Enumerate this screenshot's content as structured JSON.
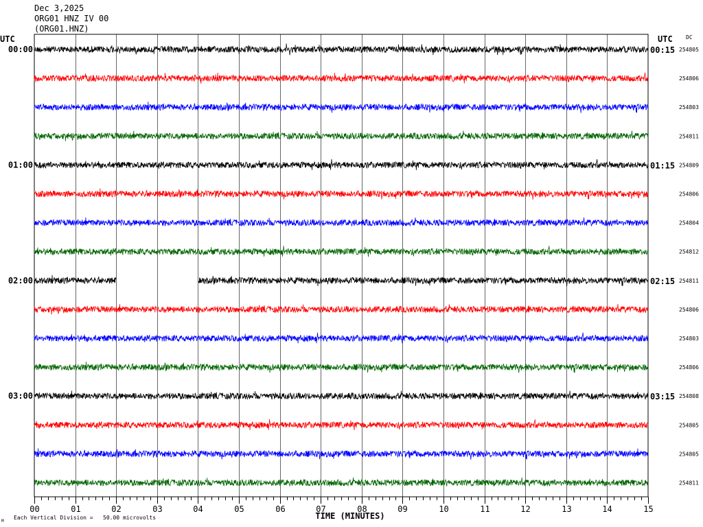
{
  "header": {
    "date": "Dec 3,2025",
    "station": "ORG01 HNZ IV 00",
    "channel": "(ORG01.HNZ)"
  },
  "left_axis_label": "UTC",
  "right_axis_label": "UTC",
  "dc_label": "DC",
  "footer": {
    "mark": "M",
    "scale_text": "Each Vertical Division =   50.00 microvolts"
  },
  "colors": {
    "trace_cycle": [
      "#000000",
      "#ff0000",
      "#0000ff",
      "#006400"
    ],
    "grid": "#000000",
    "background": "#ffffff"
  },
  "chart_data": {
    "type": "line",
    "title": "",
    "xlabel": "TIME (MINUTES)",
    "ylabel": "",
    "xlim": [
      0,
      15
    ],
    "x_ticks": [
      "00",
      "01",
      "02",
      "03",
      "04",
      "05",
      "06",
      "07",
      "08",
      "09",
      "10",
      "11",
      "12",
      "13",
      "14",
      "15"
    ],
    "grid": true,
    "lines": [
      {
        "left": "00:00",
        "right": "00:15",
        "dc": "254805"
      },
      {
        "left": "",
        "right": "",
        "dc": "254806"
      },
      {
        "left": "",
        "right": "",
        "dc": "254803"
      },
      {
        "left": "",
        "right": "",
        "dc": "254811"
      },
      {
        "left": "01:00",
        "right": "01:15",
        "dc": "254809"
      },
      {
        "left": "",
        "right": "",
        "dc": "254806"
      },
      {
        "left": "",
        "right": "",
        "dc": "254804"
      },
      {
        "left": "",
        "right": "",
        "dc": "254812"
      },
      {
        "left": "02:00",
        "right": "02:15",
        "dc": "254811",
        "gaps": [
          [
            2.0,
            4.0
          ]
        ]
      },
      {
        "left": "",
        "right": "",
        "dc": "254806"
      },
      {
        "left": "",
        "right": "",
        "dc": "254803"
      },
      {
        "left": "",
        "right": "",
        "dc": "254806"
      },
      {
        "left": "03:00",
        "right": "03:15",
        "dc": "254808"
      },
      {
        "left": "",
        "right": "",
        "dc": "254805"
      },
      {
        "left": "",
        "right": "",
        "dc": "254805"
      },
      {
        "left": "",
        "right": "",
        "dc": "254811"
      }
    ]
  }
}
